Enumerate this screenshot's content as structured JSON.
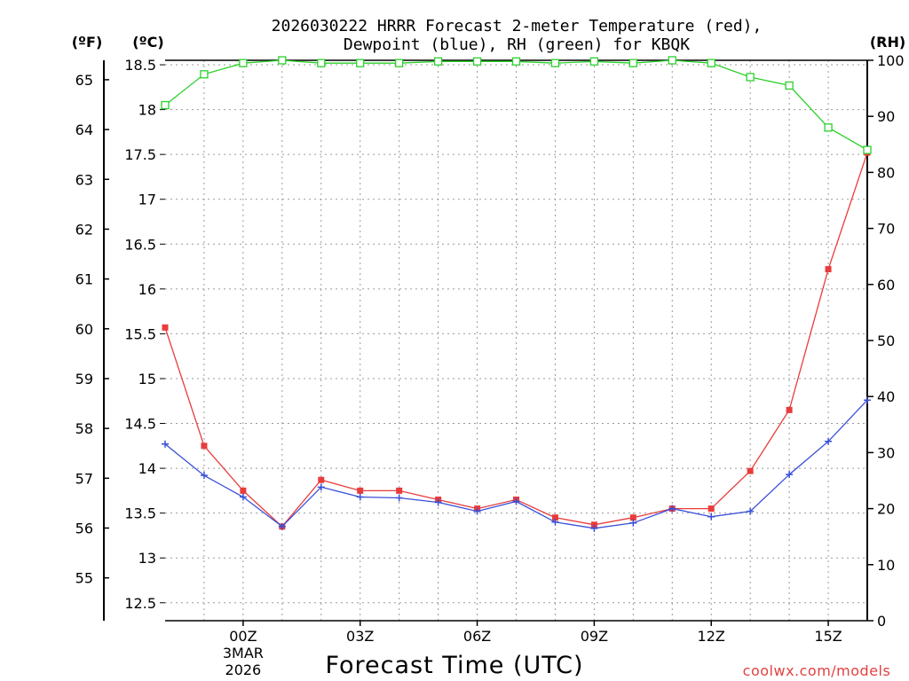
{
  "chart_data": {
    "type": "line",
    "title_line1": "2026030222 HRRR Forecast 2-meter Temperature (red),",
    "title_line2": "Dewpoint (blue), RH (green) for KBQK",
    "xlabel": "Forecast Time (UTC)",
    "credit": "coolwx.com/models",
    "units": {
      "fahrenheit": "(ºF)",
      "celsius": "(ºC)",
      "rh": "(RH)"
    },
    "x_range": [
      -2,
      16
    ],
    "celsius_range": [
      12.3,
      18.55
    ],
    "rh_range": [
      0,
      100
    ],
    "x_ticks": [
      {
        "x": 0,
        "label": "00Z",
        "sub1": "3MAR",
        "sub2": "2026"
      },
      {
        "x": 3,
        "label": "03Z"
      },
      {
        "x": 6,
        "label": "06Z"
      },
      {
        "x": 9,
        "label": "09Z"
      },
      {
        "x": 12,
        "label": "12Z"
      },
      {
        "x": 15,
        "label": "15Z"
      }
    ],
    "celsius_ticks": [
      12.5,
      13,
      13.5,
      14,
      14.5,
      15,
      15.5,
      16,
      16.5,
      17,
      17.5,
      18,
      18.5
    ],
    "celsius_tick_labels": [
      "12.5",
      "13",
      "13.5",
      "14",
      "14.5",
      "15",
      "15.5",
      "16",
      "16.5",
      "17",
      "17.5",
      "18",
      "18.5"
    ],
    "fahrenheit_ticks": [
      55,
      56,
      57,
      58,
      59,
      60,
      61,
      62,
      63,
      64,
      65
    ],
    "fahrenheit_tick_labels": [
      "55",
      "56",
      "57",
      "58",
      "59",
      "60",
      "61",
      "62",
      "63",
      "64",
      "65"
    ],
    "rh_ticks": [
      0,
      10,
      20,
      30,
      40,
      50,
      60,
      70,
      80,
      90,
      100
    ],
    "rh_tick_labels": [
      "0",
      "10",
      "20",
      "30",
      "40",
      "50",
      "60",
      "70",
      "80",
      "90",
      "100"
    ],
    "x": [
      -2,
      -1,
      0,
      1,
      2,
      3,
      4,
      5,
      6,
      7,
      8,
      9,
      10,
      11,
      12,
      13,
      14,
      15,
      16
    ],
    "series": [
      {
        "name": "Temperature",
        "axis": "celsius",
        "color": "#e83c3c",
        "marker": "filled-square",
        "values": [
          15.57,
          14.25,
          13.75,
          13.35,
          13.87,
          13.75,
          13.75,
          13.65,
          13.55,
          13.65,
          13.45,
          13.37,
          13.45,
          13.55,
          13.55,
          13.97,
          14.65,
          16.22,
          17.52
        ]
      },
      {
        "name": "Dewpoint",
        "axis": "celsius",
        "color": "#3a50d8",
        "marker": "plus",
        "values": [
          14.27,
          13.92,
          13.68,
          13.35,
          13.79,
          13.68,
          13.67,
          13.62,
          13.52,
          13.63,
          13.4,
          13.33,
          13.39,
          13.55,
          13.46,
          13.52,
          13.93,
          14.3,
          14.76
        ]
      },
      {
        "name": "RH",
        "axis": "rh",
        "color": "#2ad12a",
        "marker": "open-square",
        "values": [
          92,
          97.5,
          99.5,
          100,
          99.5,
          99.5,
          99.5,
          99.8,
          99.8,
          99.8,
          99.5,
          99.8,
          99.5,
          100,
          99.5,
          97,
          95.5,
          88,
          84
        ]
      }
    ]
  }
}
